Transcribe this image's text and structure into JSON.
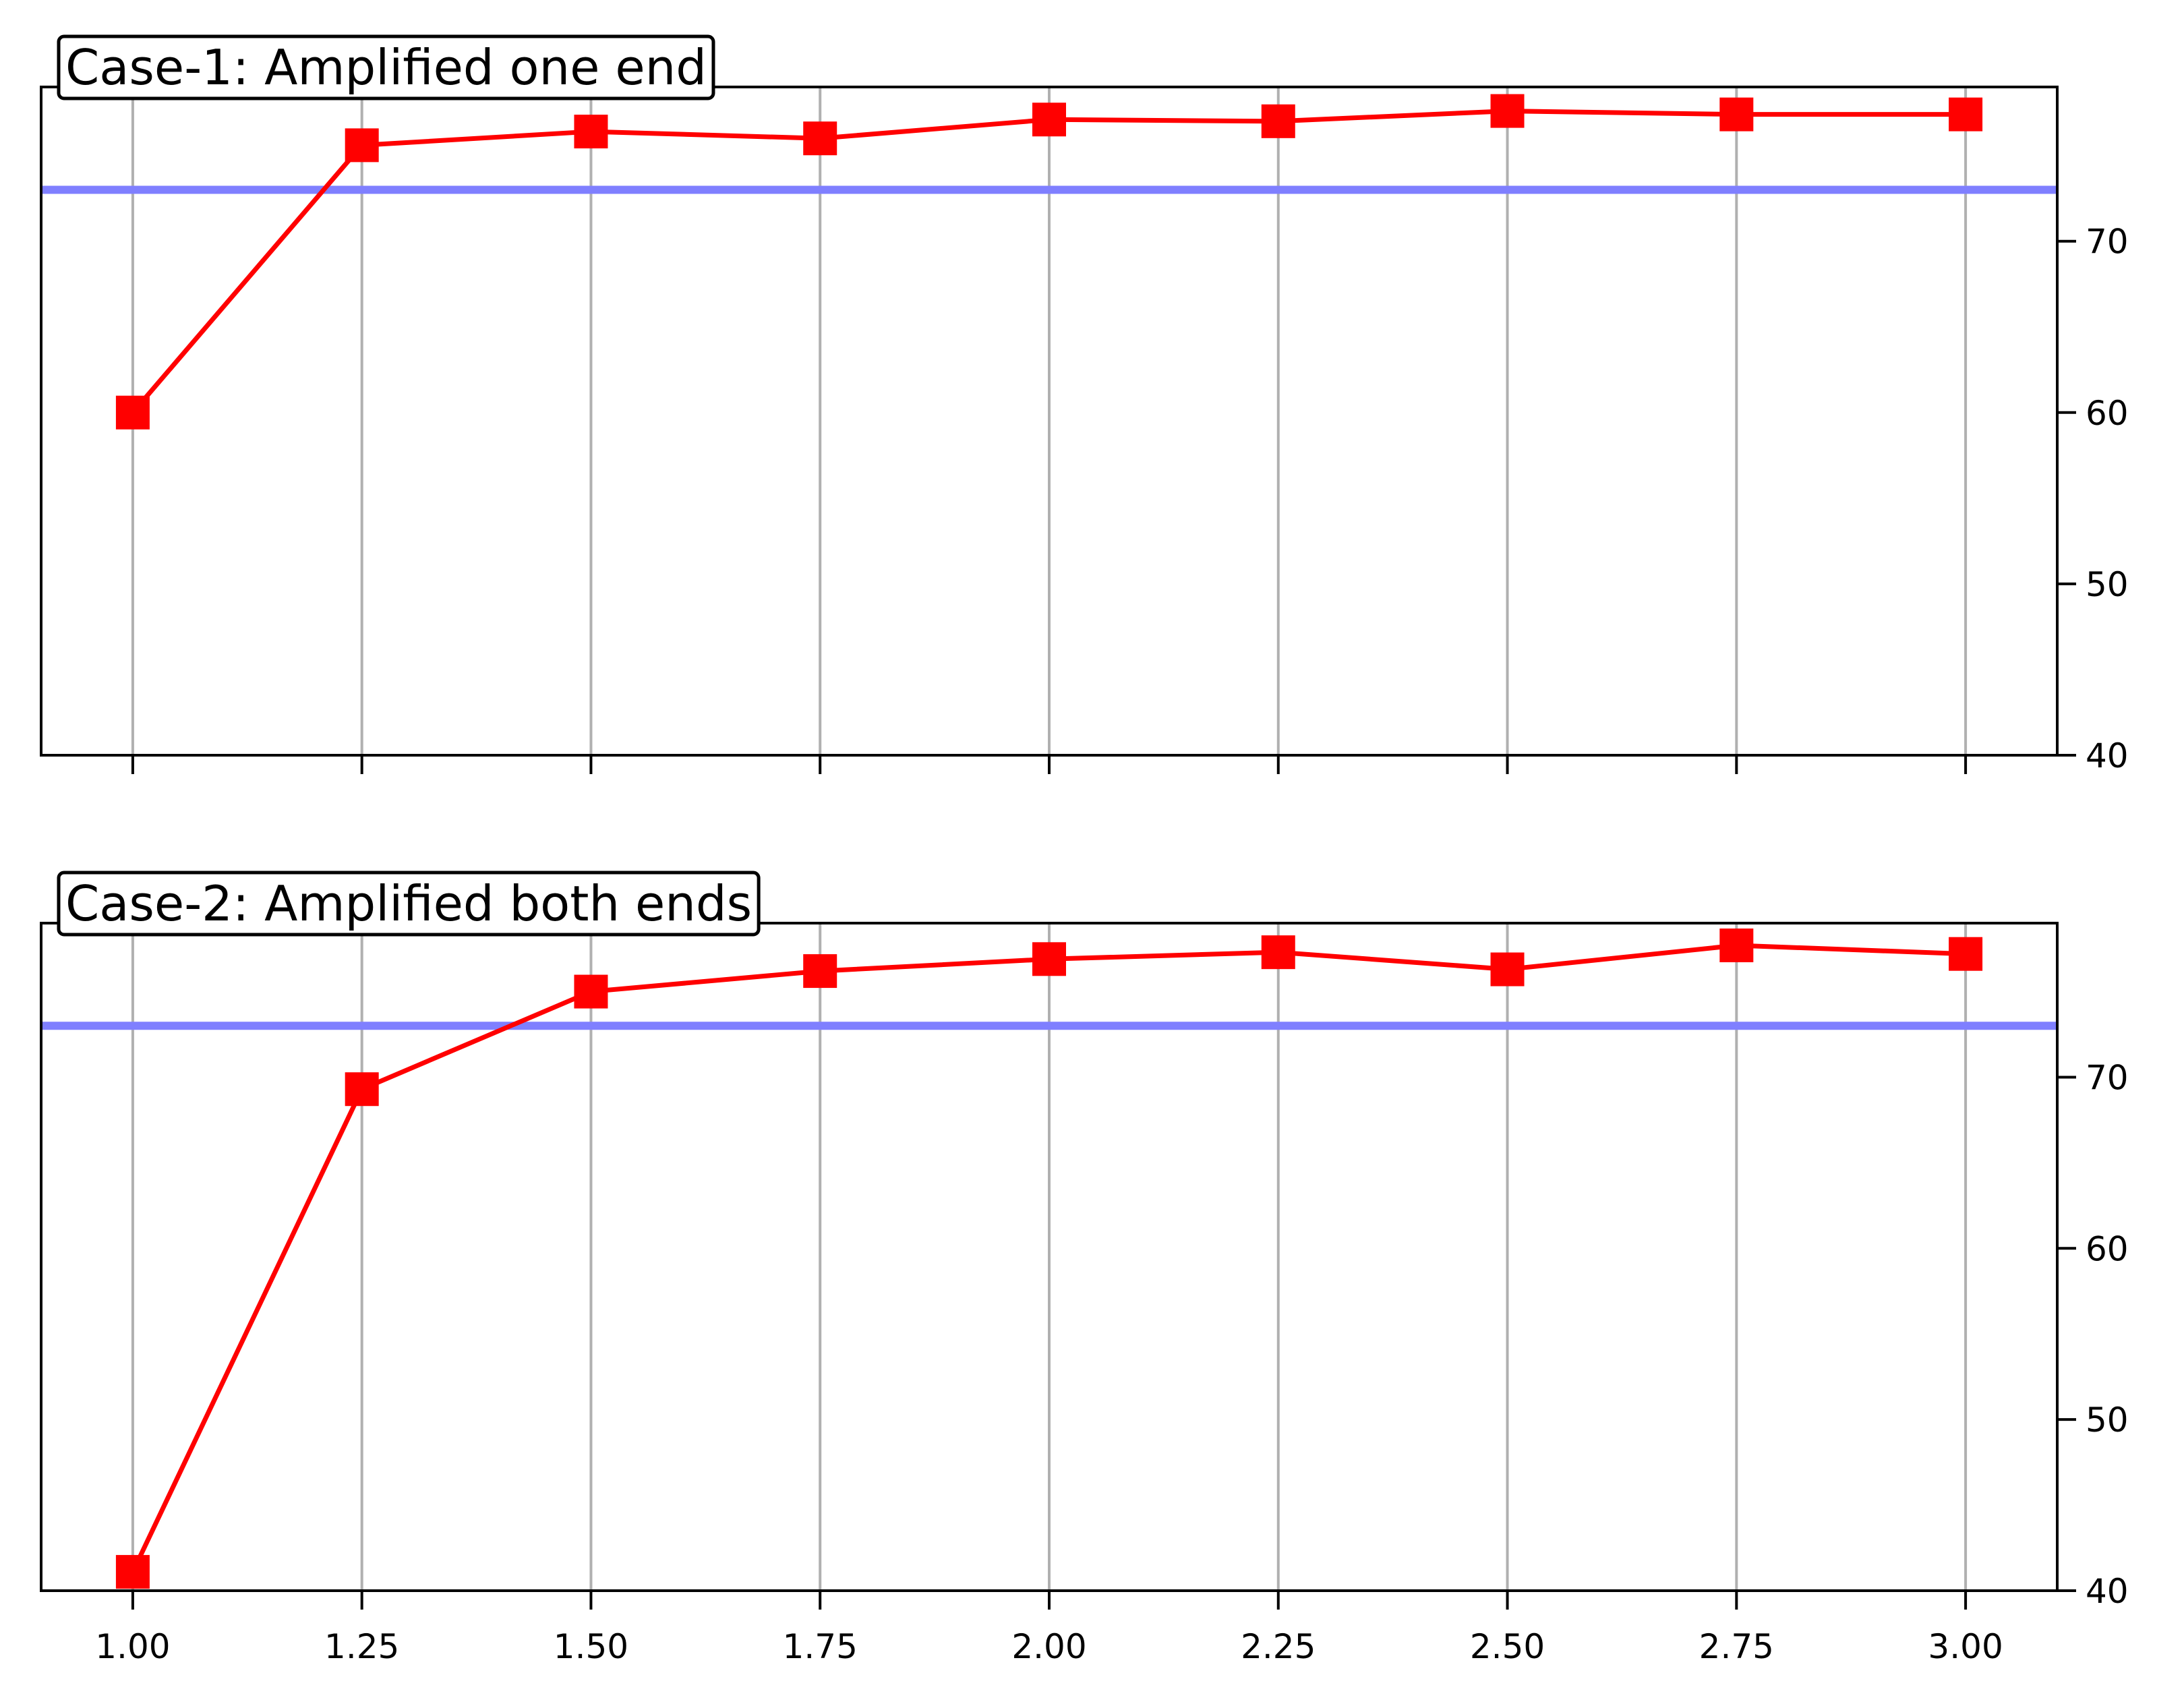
{
  "chart_data": [
    {
      "type": "line",
      "title": "Case-1: Amplified one end",
      "x": [
        1.0,
        1.25,
        1.5,
        1.75,
        2.0,
        2.25,
        2.5,
        2.75,
        3.0
      ],
      "series": [
        {
          "values": [
            60.0,
            75.6,
            76.4,
            76.0,
            77.1,
            77.0,
            77.6,
            77.4,
            77.4
          ],
          "color": "#ff0000",
          "marker": "square"
        }
      ],
      "reference_line": {
        "y": 73.0,
        "color": "#7f7fff"
      },
      "x_ticks": [
        "1.00",
        "1.25",
        "1.50",
        "1.75",
        "2.00",
        "2.25",
        "2.50",
        "2.75",
        "3.00"
      ],
      "y_ticks": [
        "40",
        "50",
        "60",
        "70"
      ],
      "xlim": [
        0.9,
        3.1
      ],
      "ylim": [
        40,
        79
      ],
      "y_axis_side": "right",
      "x_tick_labels_visible": false,
      "grid": "vertical"
    },
    {
      "type": "line",
      "title": "Case-2: Amplified both ends",
      "x": [
        1.0,
        1.25,
        1.5,
        1.75,
        2.0,
        2.25,
        2.5,
        2.75,
        3.0
      ],
      "series": [
        {
          "values": [
            41.1,
            69.3,
            75.0,
            76.2,
            76.9,
            77.3,
            76.3,
            77.7,
            77.2
          ],
          "color": "#ff0000",
          "marker": "square"
        }
      ],
      "reference_line": {
        "y": 73.0,
        "color": "#7f7fff"
      },
      "x_ticks": [
        "1.00",
        "1.25",
        "1.50",
        "1.75",
        "2.00",
        "2.25",
        "2.50",
        "2.75",
        "3.00"
      ],
      "y_ticks": [
        "40",
        "50",
        "60",
        "70"
      ],
      "xlim": [
        0.9,
        3.1
      ],
      "ylim": [
        40,
        79
      ],
      "y_axis_side": "right",
      "x_tick_labels_visible": true,
      "grid": "vertical"
    }
  ]
}
